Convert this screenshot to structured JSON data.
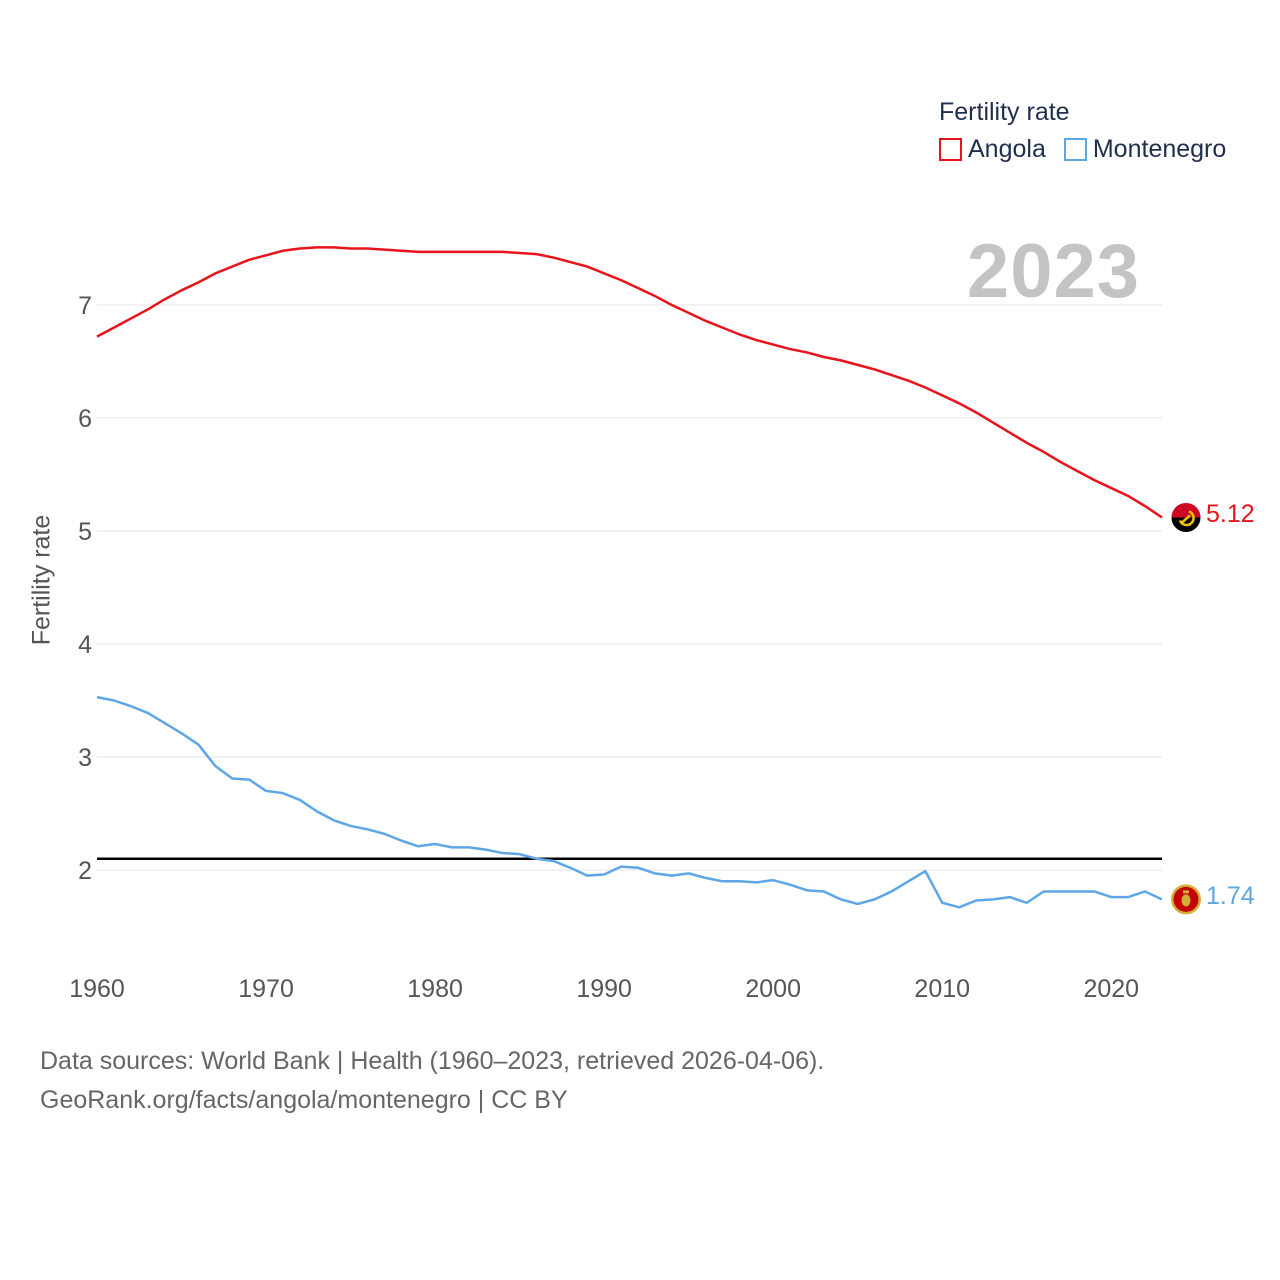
{
  "legend": {
    "title": "Fertility rate",
    "items": [
      {
        "name": "Angola",
        "color": "#e8141c"
      },
      {
        "name": "Montenegro",
        "color": "#5ea6e6"
      }
    ]
  },
  "year_label": "2023",
  "footer": {
    "line1": "Data sources: World Bank | Health (1960–2023, retrieved 2026-04-06).",
    "line2": "GeoRank.org/facts/angola/montenegro | CC BY"
  },
  "end_labels": {
    "angola": "5.12",
    "montenegro": "1.74"
  },
  "flags": {
    "angola": "angola-flag-icon",
    "montenegro": "montenegro-flag-icon"
  },
  "chart_data": {
    "type": "line",
    "title": "Fertility rate",
    "xlabel": "",
    "ylabel": "Fertility rate",
    "xlim": [
      1960,
      2023
    ],
    "ylim": [
      1.2,
      7.8
    ],
    "xticks": [
      1960,
      1970,
      1980,
      1990,
      2000,
      2010,
      2020
    ],
    "yticks": [
      2,
      3,
      4,
      5,
      6,
      7
    ],
    "grid": true,
    "reference_line": {
      "y": 2.1,
      "color": "#000000"
    },
    "x": [
      1960,
      1961,
      1962,
      1963,
      1964,
      1965,
      1966,
      1967,
      1968,
      1969,
      1970,
      1971,
      1972,
      1973,
      1974,
      1975,
      1976,
      1977,
      1978,
      1979,
      1980,
      1981,
      1982,
      1983,
      1984,
      1985,
      1986,
      1987,
      1988,
      1989,
      1990,
      1991,
      1992,
      1993,
      1994,
      1995,
      1996,
      1997,
      1998,
      1999,
      2000,
      2001,
      2002,
      2003,
      2004,
      2005,
      2006,
      2007,
      2008,
      2009,
      2010,
      2011,
      2012,
      2013,
      2014,
      2015,
      2016,
      2017,
      2018,
      2019,
      2020,
      2021,
      2022,
      2023
    ],
    "series": [
      {
        "name": "Angola",
        "color": "#e8141c",
        "values": [
          6.72,
          6.8,
          6.88,
          6.96,
          7.05,
          7.13,
          7.2,
          7.28,
          7.34,
          7.4,
          7.44,
          7.48,
          7.5,
          7.51,
          7.51,
          7.5,
          7.5,
          7.49,
          7.48,
          7.47,
          7.47,
          7.47,
          7.47,
          7.47,
          7.47,
          7.46,
          7.45,
          7.42,
          7.38,
          7.34,
          7.28,
          7.22,
          7.15,
          7.08,
          7.0,
          6.93,
          6.86,
          6.8,
          6.74,
          6.69,
          6.65,
          6.61,
          6.58,
          6.54,
          6.51,
          6.47,
          6.43,
          6.38,
          6.33,
          6.27,
          6.2,
          6.13,
          6.05,
          5.96,
          5.87,
          5.78,
          5.7,
          5.61,
          5.53,
          5.45,
          5.38,
          5.31,
          5.22,
          5.12
        ]
      },
      {
        "name": "Montenegro",
        "color": "#5ea6e6",
        "values": [
          3.53,
          3.5,
          3.45,
          3.39,
          3.3,
          3.21,
          3.11,
          2.92,
          2.81,
          2.8,
          2.7,
          2.68,
          2.62,
          2.52,
          2.44,
          2.39,
          2.36,
          2.32,
          2.26,
          2.21,
          2.23,
          2.2,
          2.2,
          2.18,
          2.15,
          2.14,
          2.1,
          2.08,
          2.02,
          1.95,
          1.96,
          2.03,
          2.02,
          1.97,
          1.95,
          1.97,
          1.93,
          1.9,
          1.9,
          1.89,
          1.91,
          1.87,
          1.82,
          1.81,
          1.74,
          1.7,
          1.74,
          1.81,
          1.9,
          1.99,
          1.71,
          1.67,
          1.73,
          1.74,
          1.76,
          1.71,
          1.81,
          1.81,
          1.81,
          1.81,
          1.76,
          1.76,
          1.81,
          1.74
        ]
      }
    ]
  }
}
